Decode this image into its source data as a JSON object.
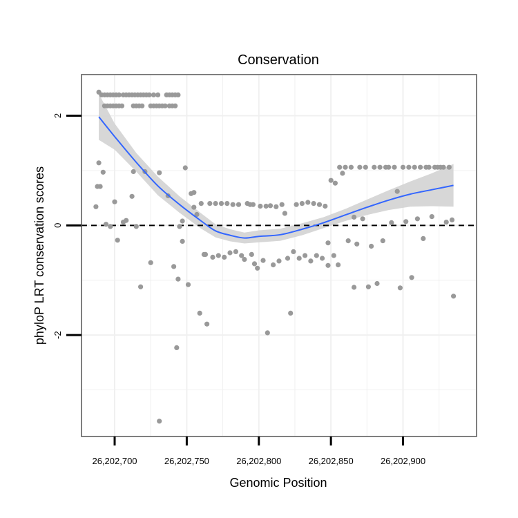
{
  "chart_data": {
    "type": "scatter",
    "title": "Conservation",
    "xlabel": "Genomic Position",
    "ylabel": "phyloP LRT conservation scores",
    "xlim": [
      26202677,
      26202951
    ],
    "ylim": [
      -3.85,
      2.75
    ],
    "x_ticks": [
      26202700,
      26202750,
      26202800,
      26202850,
      26202900
    ],
    "x_tick_labels": [
      "26,202,700",
      "26,202,750",
      "26,202,800",
      "26,202,850",
      "26,202,900"
    ],
    "y_ticks": [
      -2,
      0,
      2
    ],
    "y_tick_labels": [
      "-2",
      "0",
      "2"
    ],
    "grid": true,
    "reference_line": {
      "y": 0,
      "style": "dashed"
    },
    "colors": {
      "points": "#999999",
      "smooth": "#3366FF",
      "ribbon": "#d3d3d3",
      "frame": "#7f7f7f",
      "grid": "#f0f0f0"
    },
    "points": [
      [
        26202689,
        2.43
      ],
      [
        26202691,
        2.38
      ],
      [
        26202693,
        2.38
      ],
      [
        26202695,
        2.38
      ],
      [
        26202697,
        2.38
      ],
      [
        26202699,
        2.38
      ],
      [
        26202701,
        2.38
      ],
      [
        26202703,
        2.38
      ],
      [
        26202706,
        2.38
      ],
      [
        26202708,
        2.38
      ],
      [
        26202710,
        2.38
      ],
      [
        26202712,
        2.38
      ],
      [
        26202714,
        2.38
      ],
      [
        26202716,
        2.38
      ],
      [
        26202718,
        2.38
      ],
      [
        26202720,
        2.38
      ],
      [
        26202722,
        2.38
      ],
      [
        26202724,
        2.38
      ],
      [
        26202727,
        2.38
      ],
      [
        26202730,
        2.38
      ],
      [
        26202736,
        2.38
      ],
      [
        26202738,
        2.38
      ],
      [
        26202740,
        2.38
      ],
      [
        26202742,
        2.38
      ],
      [
        26202744,
        2.38
      ],
      [
        26202693,
        2.18
      ],
      [
        26202695,
        2.18
      ],
      [
        26202697,
        2.18
      ],
      [
        26202699,
        2.18
      ],
      [
        26202701,
        2.18
      ],
      [
        26202703,
        2.18
      ],
      [
        26202705,
        2.18
      ],
      [
        26202713,
        2.18
      ],
      [
        26202715,
        2.18
      ],
      [
        26202717,
        2.18
      ],
      [
        26202719,
        2.18
      ],
      [
        26202725,
        2.18
      ],
      [
        26202727,
        2.18
      ],
      [
        26202729,
        2.18
      ],
      [
        26202731,
        2.18
      ],
      [
        26202733,
        2.18
      ],
      [
        26202735,
        2.18
      ],
      [
        26202738,
        2.18
      ],
      [
        26202740,
        2.18
      ],
      [
        26202742,
        2.18
      ],
      [
        26202688,
        0.71
      ],
      [
        26202689,
        1.14
      ],
      [
        26202690,
        0.71
      ],
      [
        26202692,
        0.97
      ],
      [
        26202687,
        0.34
      ],
      [
        26202694,
        0.02
      ],
      [
        26202697,
        -0.02
      ],
      [
        26202700,
        0.43
      ],
      [
        26202702,
        -0.27
      ],
      [
        26202706,
        0.06
      ],
      [
        26202708,
        0.09
      ],
      [
        26202713,
        0.98
      ],
      [
        26202712,
        0.53
      ],
      [
        26202715,
        -0.02
      ],
      [
        26202718,
        -1.12
      ],
      [
        26202721,
        0.98
      ],
      [
        26202725,
        -0.68
      ],
      [
        26202731,
        0.96
      ],
      [
        26202737,
        0.54
      ],
      [
        26202741,
        -0.75
      ],
      [
        26202743,
        -2.23
      ],
      [
        26202744,
        -0.98
      ],
      [
        26202745,
        -0.02
      ],
      [
        26202747,
        -0.29
      ],
      [
        26202747,
        0.08
      ],
      [
        26202749,
        1.05
      ],
      [
        26202751,
        -1.08
      ],
      [
        26202753,
        0.58
      ],
      [
        26202755,
        0.6
      ],
      [
        26202755,
        0.33
      ],
      [
        26202759,
        -1.6
      ],
      [
        26202762,
        -0.53
      ],
      [
        26202764,
        -1.8
      ],
      [
        26202731,
        -3.57
      ],
      [
        26202757,
        0.2
      ],
      [
        26202760,
        0.4
      ],
      [
        26202763,
        -0.53
      ],
      [
        26202766,
        0.4
      ],
      [
        26202768,
        -0.58
      ],
      [
        26202770,
        0.4
      ],
      [
        26202772,
        -0.55
      ],
      [
        26202774,
        0.4
      ],
      [
        26202776,
        -0.58
      ],
      [
        26202778,
        0.4
      ],
      [
        26202780,
        -0.5
      ],
      [
        26202782,
        0.38
      ],
      [
        26202784,
        -0.48
      ],
      [
        26202786,
        0.38
      ],
      [
        26202788,
        -0.55
      ],
      [
        26202790,
        -0.62
      ],
      [
        26202792,
        0.4
      ],
      [
        26202794,
        0.38
      ],
      [
        26202795,
        -0.53
      ],
      [
        26202796,
        0.38
      ],
      [
        26202797,
        -0.7
      ],
      [
        26202799,
        -0.78
      ],
      [
        26202801,
        0.35
      ],
      [
        26202803,
        -0.64
      ],
      [
        26202805,
        0.35
      ],
      [
        26202806,
        -1.96
      ],
      [
        26202808,
        0.36
      ],
      [
        26202810,
        -0.72
      ],
      [
        26202812,
        0.34
      ],
      [
        26202814,
        -0.65
      ],
      [
        26202816,
        0.38
      ],
      [
        26202818,
        0.22
      ],
      [
        26202820,
        -0.6
      ],
      [
        26202822,
        -1.6
      ],
      [
        26202824,
        -0.48
      ],
      [
        26202826,
        0.38
      ],
      [
        26202828,
        -0.6
      ],
      [
        26202830,
        0.4
      ],
      [
        26202832,
        -0.55
      ],
      [
        26202834,
        0.42
      ],
      [
        26202836,
        -0.65
      ],
      [
        26202838,
        0.4
      ],
      [
        26202840,
        -0.55
      ],
      [
        26202842,
        0.38
      ],
      [
        26202844,
        -0.6
      ],
      [
        26202846,
        0.35
      ],
      [
        26202848,
        -0.32
      ],
      [
        26202848,
        -0.73
      ],
      [
        26202850,
        0.82
      ],
      [
        26202852,
        -0.55
      ],
      [
        26202853,
        0.77
      ],
      [
        26202855,
        -0.72
      ],
      [
        26202856,
        1.06
      ],
      [
        26202858,
        0.95
      ],
      [
        26202860,
        1.06
      ],
      [
        26202862,
        -0.28
      ],
      [
        26202864,
        1.06
      ],
      [
        26202866,
        0.15
      ],
      [
        26202866,
        -1.13
      ],
      [
        26202868,
        -0.34
      ],
      [
        26202870,
        1.06
      ],
      [
        26202872,
        0.12
      ],
      [
        26202874,
        1.06
      ],
      [
        26202876,
        -1.12
      ],
      [
        26202878,
        -0.38
      ],
      [
        26202880,
        1.06
      ],
      [
        26202882,
        -1.06
      ],
      [
        26202884,
        1.06
      ],
      [
        26202886,
        -0.28
      ],
      [
        26202888,
        1.06
      ],
      [
        26202890,
        1.06
      ],
      [
        26202892,
        0.05
      ],
      [
        26202894,
        1.06
      ],
      [
        26202896,
        0.62
      ],
      [
        26202898,
        -1.14
      ],
      [
        26202900,
        1.06
      ],
      [
        26202902,
        0.07
      ],
      [
        26202904,
        1.06
      ],
      [
        26202906,
        -0.95
      ],
      [
        26202908,
        1.06
      ],
      [
        26202910,
        0.12
      ],
      [
        26202912,
        1.06
      ],
      [
        26202914,
        -0.24
      ],
      [
        26202916,
        1.06
      ],
      [
        26202918,
        1.06
      ],
      [
        26202920,
        0.16
      ],
      [
        26202922,
        1.06
      ],
      [
        26202924,
        1.06
      ],
      [
        26202926,
        1.06
      ],
      [
        26202928,
        1.06
      ],
      [
        26202930,
        0.06
      ],
      [
        26202932,
        1.06
      ],
      [
        26202934,
        0.1
      ],
      [
        26202935,
        -1.29
      ]
    ],
    "smooth": {
      "x": [
        26202689,
        26202700,
        26202715,
        26202730,
        26202745,
        26202760,
        26202770,
        26202780,
        26202790,
        26202800,
        26202815,
        26202830,
        26202845,
        26202860,
        26202875,
        26202890,
        26202905,
        26202920,
        26202935
      ],
      "y": [
        1.98,
        1.62,
        1.15,
        0.72,
        0.38,
        0.08,
        -0.1,
        -0.18,
        -0.23,
        -0.2,
        -0.17,
        -0.07,
        0.05,
        0.19,
        0.33,
        0.46,
        0.57,
        0.65,
        0.73
      ],
      "lower": [
        1.56,
        1.38,
        0.98,
        0.55,
        0.23,
        -0.06,
        -0.22,
        -0.29,
        -0.33,
        -0.31,
        -0.28,
        -0.18,
        -0.05,
        0.08,
        0.19,
        0.28,
        0.34,
        0.35,
        0.34
      ],
      "upper": [
        2.4,
        1.86,
        1.32,
        0.89,
        0.53,
        0.22,
        0.02,
        -0.07,
        -0.13,
        -0.09,
        -0.06,
        0.04,
        0.15,
        0.3,
        0.47,
        0.64,
        0.8,
        0.95,
        1.12
      ]
    }
  }
}
